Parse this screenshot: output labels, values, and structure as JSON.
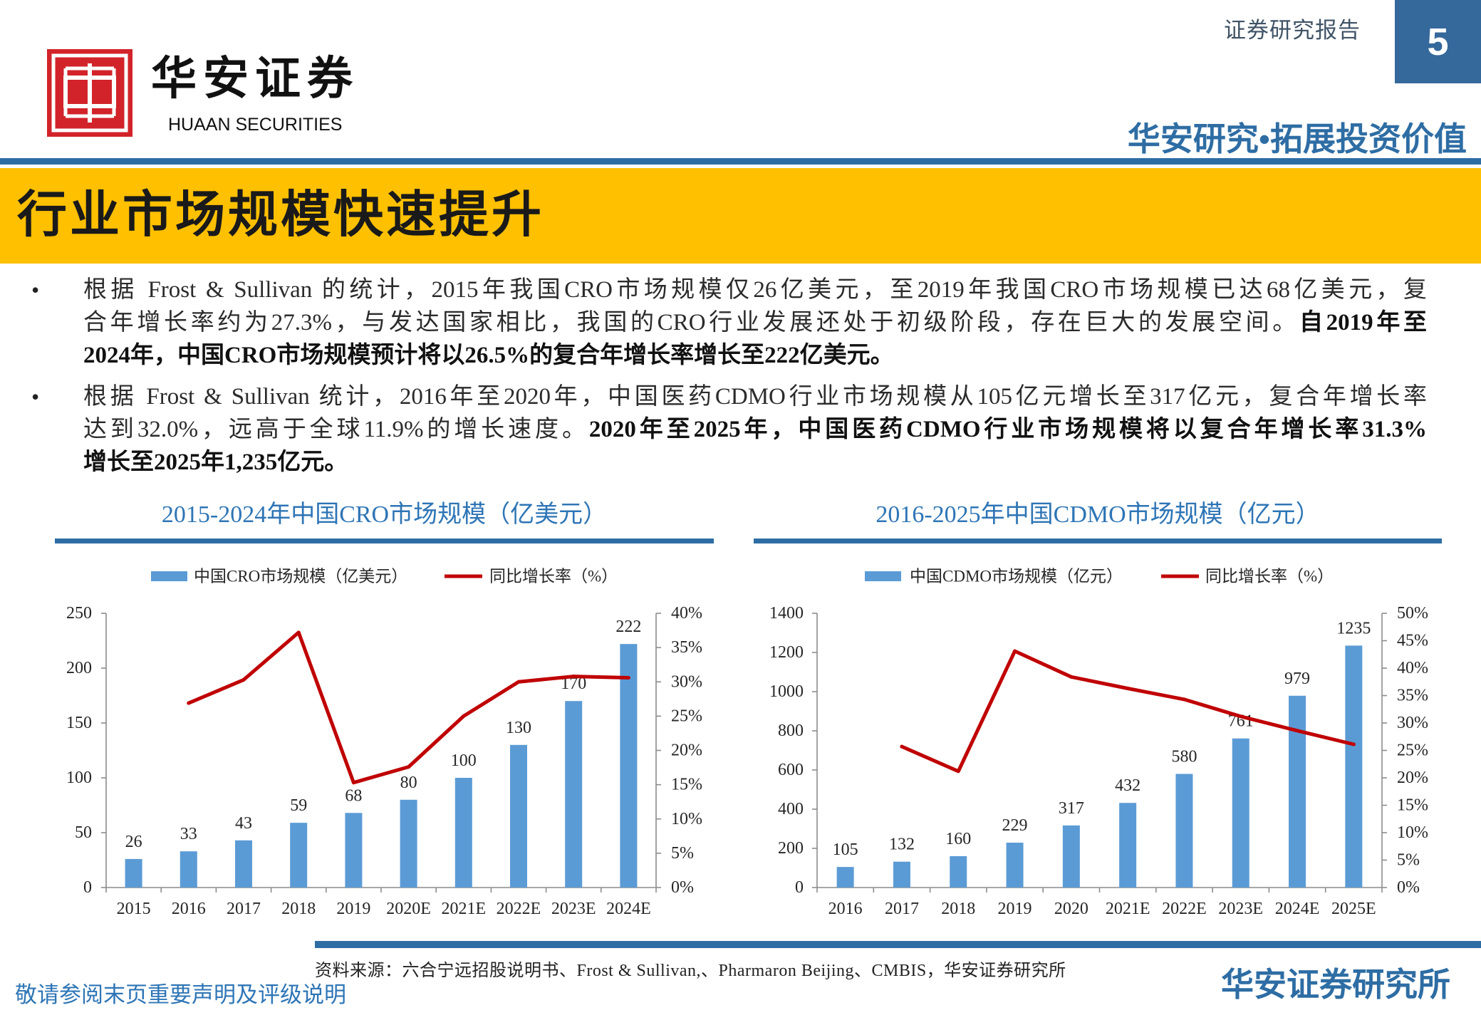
{
  "header": {
    "report_type": "证券研究报告",
    "page_number": "5",
    "logo_cn": "华安证券",
    "logo_en": "HUAAN SECURITIES",
    "slogan": "华安研究•拓展投资价值"
  },
  "title": "行业市场规模快速提升",
  "bullet_symbol": "•",
  "bullets": [
    {
      "lines": [
        [
          "根据 Frost & Sullivan 的统计，2015年我国CRO市场规模仅26亿美元，至2019年我国CRO市场规模已达68亿美元，复"
        ],
        [
          "合年增长率约为27.3%，与发达国家相比，我国的CRO行业发展还处于初级阶段，存在巨大的发展空间。",
          "自2019年至"
        ],
        [
          "2024年，中国CRO市场规模预计将以26.5%的复合年增长率增长至222亿美元。"
        ]
      ]
    },
    {
      "lines": [
        [
          "根据 Frost & Sullivan 统计，2016年至2020年，中国医药CDMO行业市场规模从105亿元增长至317亿元，复合年增长率"
        ],
        [
          "达到32.0%，远高于全球11.9%的增长速度。",
          "2020年至2025年，中国医药CDMO行业市场规模将以复合年增长率31.3%"
        ],
        [
          "增长至2025年1,235亿元。"
        ]
      ]
    }
  ],
  "chart_data": [
    {
      "type": "bar",
      "title": "2015-2024年中国CRO市场规模（亿美元）",
      "categories": [
        "2015",
        "2016",
        "2017",
        "2018",
        "2019",
        "2020E",
        "2021E",
        "2022E",
        "2023E",
        "2024E"
      ],
      "series": [
        {
          "name": "中国CRO市场规模（亿美元）",
          "type": "bar",
          "axis": "left",
          "color": "#5b9bd5",
          "values": [
            26,
            33,
            43,
            59,
            68,
            80,
            100,
            130,
            170,
            222
          ]
        },
        {
          "name": "同比增长率（%）",
          "type": "line",
          "axis": "right",
          "color": "#c00000",
          "values": [
            null,
            26.9,
            30.3,
            37.2,
            15.3,
            17.6,
            25.0,
            30.0,
            30.8,
            30.6
          ]
        }
      ],
      "ylim": [
        0,
        250
      ],
      "y_ticks": [
        "0",
        "50",
        "100",
        "150",
        "200",
        "250"
      ],
      "y2lim": [
        0,
        40
      ],
      "y2_ticks": [
        "0%",
        "5%",
        "10%",
        "15%",
        "20%",
        "25%",
        "30%",
        "35%",
        "40%"
      ],
      "legend": "top",
      "grid": false
    },
    {
      "type": "bar",
      "title": "2016-2025年中国CDMO市场规模（亿元）",
      "categories": [
        "2016",
        "2017",
        "2018",
        "2019",
        "2020",
        "2021E",
        "2022E",
        "2023E",
        "2024E",
        "2025E"
      ],
      "series": [
        {
          "name": "中国CDMO市场规模（亿元）",
          "type": "bar",
          "axis": "left",
          "color": "#5b9bd5",
          "values": [
            105,
            132,
            160,
            229,
            317,
            432,
            580,
            761,
            979,
            1235
          ]
        },
        {
          "name": "同比增长率（%）",
          "type": "line",
          "axis": "right",
          "color": "#c00000",
          "values": [
            null,
            25.7,
            21.2,
            43.1,
            38.4,
            36.3,
            34.3,
            31.2,
            28.6,
            26.1
          ]
        }
      ],
      "ylim": [
        0,
        1400
      ],
      "y_ticks": [
        "0",
        "200",
        "400",
        "600",
        "800",
        "1000",
        "1200",
        "1400"
      ],
      "y2lim": [
        0,
        50
      ],
      "y2_ticks": [
        "0%",
        "5%",
        "10%",
        "15%",
        "20%",
        "25%",
        "30%",
        "35%",
        "40%",
        "45%",
        "50%"
      ],
      "legend": "top",
      "grid": false
    }
  ],
  "footer": {
    "source": "资料来源：六合宁远招股说明书、Frost & Sullivan,、Pharmaron Beijing、CMBIS，华安证券研究所",
    "disclaimer": "敬请参阅末页重要声明及评级说明",
    "institution": "华安证券研究所"
  },
  "colors": {
    "accent_blue": "#2e6da4",
    "title_bar": "#ffc000",
    "seal_red": "#d2232a"
  }
}
